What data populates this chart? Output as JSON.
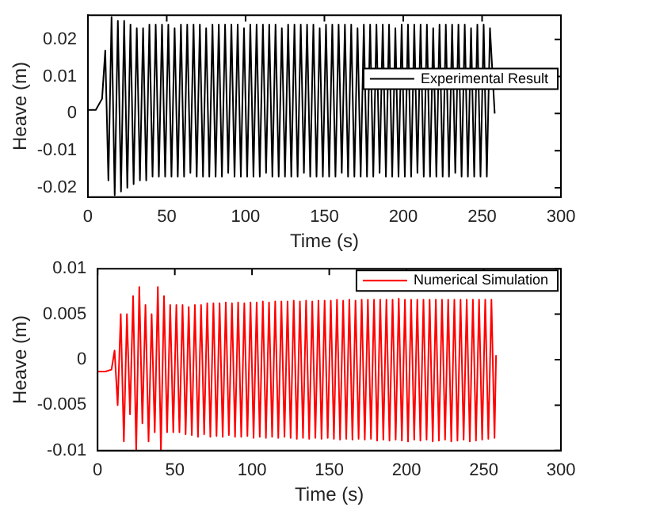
{
  "chart_data": [
    {
      "type": "line",
      "xlabel": "Time (s)",
      "ylabel": "Heave (m)",
      "xlim": [
        0,
        300
      ],
      "xticks": [
        0,
        50,
        100,
        150,
        200,
        250,
        300
      ],
      "ylim": [
        -0.0225,
        0.0265
      ],
      "yticks": [
        -0.02,
        -0.01,
        0,
        0.01,
        0.02
      ],
      "grid": false,
      "legend": "right",
      "marker": "none",
      "line_style": "solid",
      "series": [
        {
          "name": "Experimental Result",
          "color": "#000000",
          "x": [
            0,
            5,
            9,
            11,
            13,
            15,
            17,
            19,
            21,
            23,
            25,
            27,
            29,
            31,
            33,
            35,
            37,
            39,
            41,
            43,
            45,
            47,
            49,
            51,
            53,
            55,
            57,
            59,
            61,
            63,
            65,
            67,
            69,
            71,
            73,
            75,
            77,
            79,
            81,
            83,
            85,
            87,
            89,
            91,
            93,
            95,
            97,
            99,
            101,
            103,
            105,
            107,
            109,
            111,
            113,
            115,
            117,
            119,
            121,
            123,
            125,
            127,
            129,
            131,
            133,
            135,
            137,
            139,
            141,
            143,
            145,
            147,
            149,
            151,
            153,
            155,
            157,
            159,
            161,
            163,
            165,
            167,
            169,
            171,
            173,
            175,
            177,
            179,
            181,
            183,
            185,
            187,
            189,
            191,
            193,
            195,
            197,
            199,
            201,
            203,
            205,
            207,
            209,
            211,
            213,
            215,
            217,
            219,
            221,
            223,
            225,
            227,
            229,
            231,
            233,
            235,
            237,
            239,
            241,
            243,
            245,
            247,
            249,
            251,
            253,
            255,
            258
          ],
          "values": [
            0.001,
            0.001,
            0.004,
            0.017,
            -0.018,
            0.026,
            -0.022,
            0.025,
            -0.021,
            0.025,
            -0.02,
            0.024,
            -0.019,
            0.023,
            -0.018,
            0.023,
            -0.018,
            0.024,
            -0.017,
            0.024,
            -0.017,
            0.024,
            -0.017,
            0.024,
            -0.017,
            0.023,
            -0.017,
            0.024,
            -0.017,
            0.024,
            -0.016,
            0.024,
            -0.017,
            0.024,
            -0.017,
            0.023,
            -0.017,
            0.024,
            -0.017,
            0.024,
            -0.017,
            0.024,
            -0.016,
            0.024,
            -0.017,
            0.024,
            -0.017,
            0.023,
            -0.017,
            0.024,
            -0.017,
            0.024,
            -0.017,
            0.024,
            -0.016,
            0.024,
            -0.017,
            0.024,
            -0.017,
            0.023,
            -0.017,
            0.024,
            -0.017,
            0.024,
            -0.017,
            0.024,
            -0.016,
            0.024,
            -0.017,
            0.024,
            -0.017,
            0.023,
            -0.017,
            0.024,
            -0.017,
            0.024,
            -0.017,
            0.024,
            -0.016,
            0.024,
            -0.017,
            0.024,
            -0.017,
            0.023,
            -0.017,
            0.024,
            -0.017,
            0.024,
            -0.017,
            0.024,
            -0.016,
            0.024,
            -0.017,
            0.024,
            -0.017,
            0.023,
            -0.017,
            0.024,
            -0.017,
            0.024,
            -0.017,
            0.024,
            -0.016,
            0.024,
            -0.017,
            0.024,
            -0.017,
            0.023,
            -0.017,
            0.024,
            -0.017,
            0.024,
            -0.017,
            0.024,
            -0.016,
            0.024,
            -0.017,
            0.024,
            -0.017,
            0.023,
            -0.017,
            0.024,
            -0.017,
            0.024,
            -0.017,
            0.023,
            0
          ]
        }
      ]
    },
    {
      "type": "line",
      "xlabel": "Time (s)",
      "ylabel": "Heave (m)",
      "xlim": [
        0,
        300
      ],
      "xticks": [
        0,
        50,
        100,
        150,
        200,
        250,
        300
      ],
      "ylim": [
        -0.01,
        0.01
      ],
      "yticks": [
        -0.01,
        -0.005,
        0,
        0.005,
        0.01
      ],
      "grid": false,
      "legend": "top right",
      "marker": "none",
      "line_style": "solid",
      "series": [
        {
          "name": "Numerical Simulation",
          "color": "#ff0000",
          "x": [
            0,
            5,
            9,
            11,
            13,
            15,
            17,
            19,
            21,
            23,
            25,
            27,
            29,
            31,
            33,
            35,
            37,
            39,
            41,
            43,
            45,
            47,
            49,
            51,
            53,
            55,
            57,
            59,
            61,
            63,
            65,
            67,
            69,
            71,
            73,
            75,
            77,
            79,
            81,
            83,
            85,
            87,
            89,
            91,
            93,
            95,
            97,
            99,
            101,
            103,
            105,
            107,
            109,
            111,
            113,
            115,
            117,
            119,
            121,
            123,
            125,
            127,
            129,
            131,
            133,
            135,
            137,
            139,
            141,
            143,
            145,
            147,
            149,
            151,
            153,
            155,
            157,
            159,
            161,
            163,
            165,
            167,
            169,
            171,
            173,
            175,
            177,
            179,
            181,
            183,
            185,
            187,
            189,
            191,
            193,
            195,
            197,
            199,
            201,
            203,
            205,
            207,
            209,
            211,
            213,
            215,
            217,
            219,
            221,
            223,
            225,
            227,
            229,
            231,
            233,
            235,
            237,
            239,
            241,
            243,
            245,
            247,
            249,
            251,
            253,
            255,
            257,
            258
          ],
          "values": [
            -0.0013,
            -0.0013,
            -0.0011,
            0.001,
            -0.005,
            0.005,
            -0.009,
            0.005,
            -0.006,
            0.007,
            -0.01,
            0.008,
            -0.007,
            0.006,
            -0.009,
            0.005,
            -0.008,
            0.008,
            -0.01,
            0.007,
            -0.008,
            0.006,
            -0.008,
            0.006,
            -0.008,
            0.006,
            -0.0082,
            0.0058,
            -0.0083,
            0.006,
            -0.0085,
            0.006,
            -0.0082,
            0.0062,
            -0.0085,
            0.0062,
            -0.0084,
            0.0062,
            -0.0085,
            0.0063,
            -0.0083,
            0.0062,
            -0.0085,
            0.0063,
            -0.0085,
            0.0062,
            -0.0084,
            0.0063,
            -0.0086,
            0.0063,
            -0.0085,
            0.0064,
            -0.0086,
            0.0063,
            -0.0085,
            0.0064,
            -0.0086,
            0.0064,
            -0.0085,
            0.0064,
            -0.0086,
            0.0065,
            -0.0087,
            0.0064,
            -0.0086,
            0.0065,
            -0.0087,
            0.0064,
            -0.0086,
            0.0065,
            -0.0087,
            0.0065,
            -0.0086,
            0.0065,
            -0.0087,
            0.0066,
            -0.0088,
            0.0065,
            -0.0087,
            0.0066,
            -0.0088,
            0.0065,
            -0.0087,
            0.0066,
            -0.0088,
            0.0066,
            -0.0087,
            0.0066,
            -0.0089,
            0.0066,
            -0.0088,
            0.0066,
            -0.0089,
            0.0066,
            -0.0088,
            0.0067,
            -0.0089,
            0.0066,
            -0.009,
            0.0066,
            -0.0088,
            0.0066,
            -0.0089,
            0.0066,
            -0.0088,
            0.0066,
            -0.009,
            0.0066,
            -0.0089,
            0.0066,
            -0.0088,
            0.0066,
            -0.009,
            0.0066,
            -0.0089,
            0.0066,
            -0.0088,
            0.0066,
            -0.009,
            0.0066,
            -0.0089,
            0.0066,
            -0.0088,
            0.0066,
            -0.0087,
            0.0066,
            -0.0086,
            0.0005
          ]
        }
      ]
    }
  ]
}
